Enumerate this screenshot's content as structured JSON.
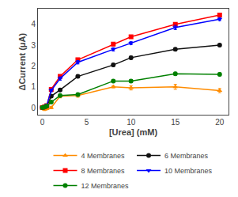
{
  "chart_data": {
    "type": "line",
    "x": [
      0,
      0.25,
      0.5,
      1,
      2,
      4,
      8,
      10,
      15,
      20
    ],
    "series": [
      {
        "name": "4 Membranes",
        "color": "#FF8C00",
        "marker": "triangle-up",
        "values": [
          0.0,
          -0.08,
          -0.05,
          0.0,
          0.55,
          0.58,
          1.0,
          0.95,
          1.0,
          0.82
        ],
        "yerr": [
          0.06,
          0.06,
          0.05,
          0.05,
          0.08,
          0.08,
          0.05,
          0.1,
          0.12,
          0.1
        ]
      },
      {
        "name": "6 Membranes",
        "color": "#111111",
        "marker": "circle",
        "values": [
          0.0,
          0.03,
          0.08,
          0.55,
          0.85,
          1.5,
          2.05,
          2.4,
          2.8,
          3.0
        ],
        "yerr": [
          0.05,
          0.05,
          0.05,
          0.07,
          0.07,
          0.07,
          0.07,
          0.07,
          0.07,
          0.06
        ]
      },
      {
        "name": "8 Membranes",
        "color": "#FF0000",
        "marker": "square",
        "values": [
          0.0,
          0.04,
          0.1,
          0.88,
          1.5,
          2.3,
          3.05,
          3.4,
          4.0,
          4.45
        ],
        "yerr": [
          0.05,
          0.05,
          0.05,
          0.07,
          0.08,
          0.08,
          0.08,
          0.07,
          0.07,
          0.07
        ]
      },
      {
        "name": "10 Membranes",
        "color": "#0000FF",
        "marker": "triangle-down",
        "values": [
          0.0,
          0.04,
          0.12,
          0.83,
          1.4,
          2.18,
          2.8,
          3.1,
          3.85,
          4.25
        ],
        "yerr": [
          0.05,
          0.05,
          0.05,
          0.07,
          0.08,
          0.08,
          0.08,
          0.07,
          0.1,
          0.07
        ]
      },
      {
        "name": "12 Membranes",
        "color": "#008000",
        "marker": "circle",
        "values": [
          0.0,
          0.03,
          0.08,
          0.27,
          0.58,
          0.63,
          1.28,
          1.28,
          1.63,
          1.6
        ],
        "yerr": [
          0.05,
          0.05,
          0.05,
          0.05,
          0.07,
          0.07,
          0.07,
          0.07,
          0.07,
          0.07
        ]
      }
    ],
    "xlabel": "[Urea] (mM)",
    "ylabel": "ΔCurrent (μA)",
    "xlim": [
      -0.5,
      21
    ],
    "ylim": [
      -0.35,
      4.75
    ],
    "xticks": [
      0,
      5,
      10,
      15,
      20
    ],
    "yticks": [
      0,
      1,
      2,
      3,
      4
    ],
    "grid": false,
    "legend": "bottom"
  }
}
